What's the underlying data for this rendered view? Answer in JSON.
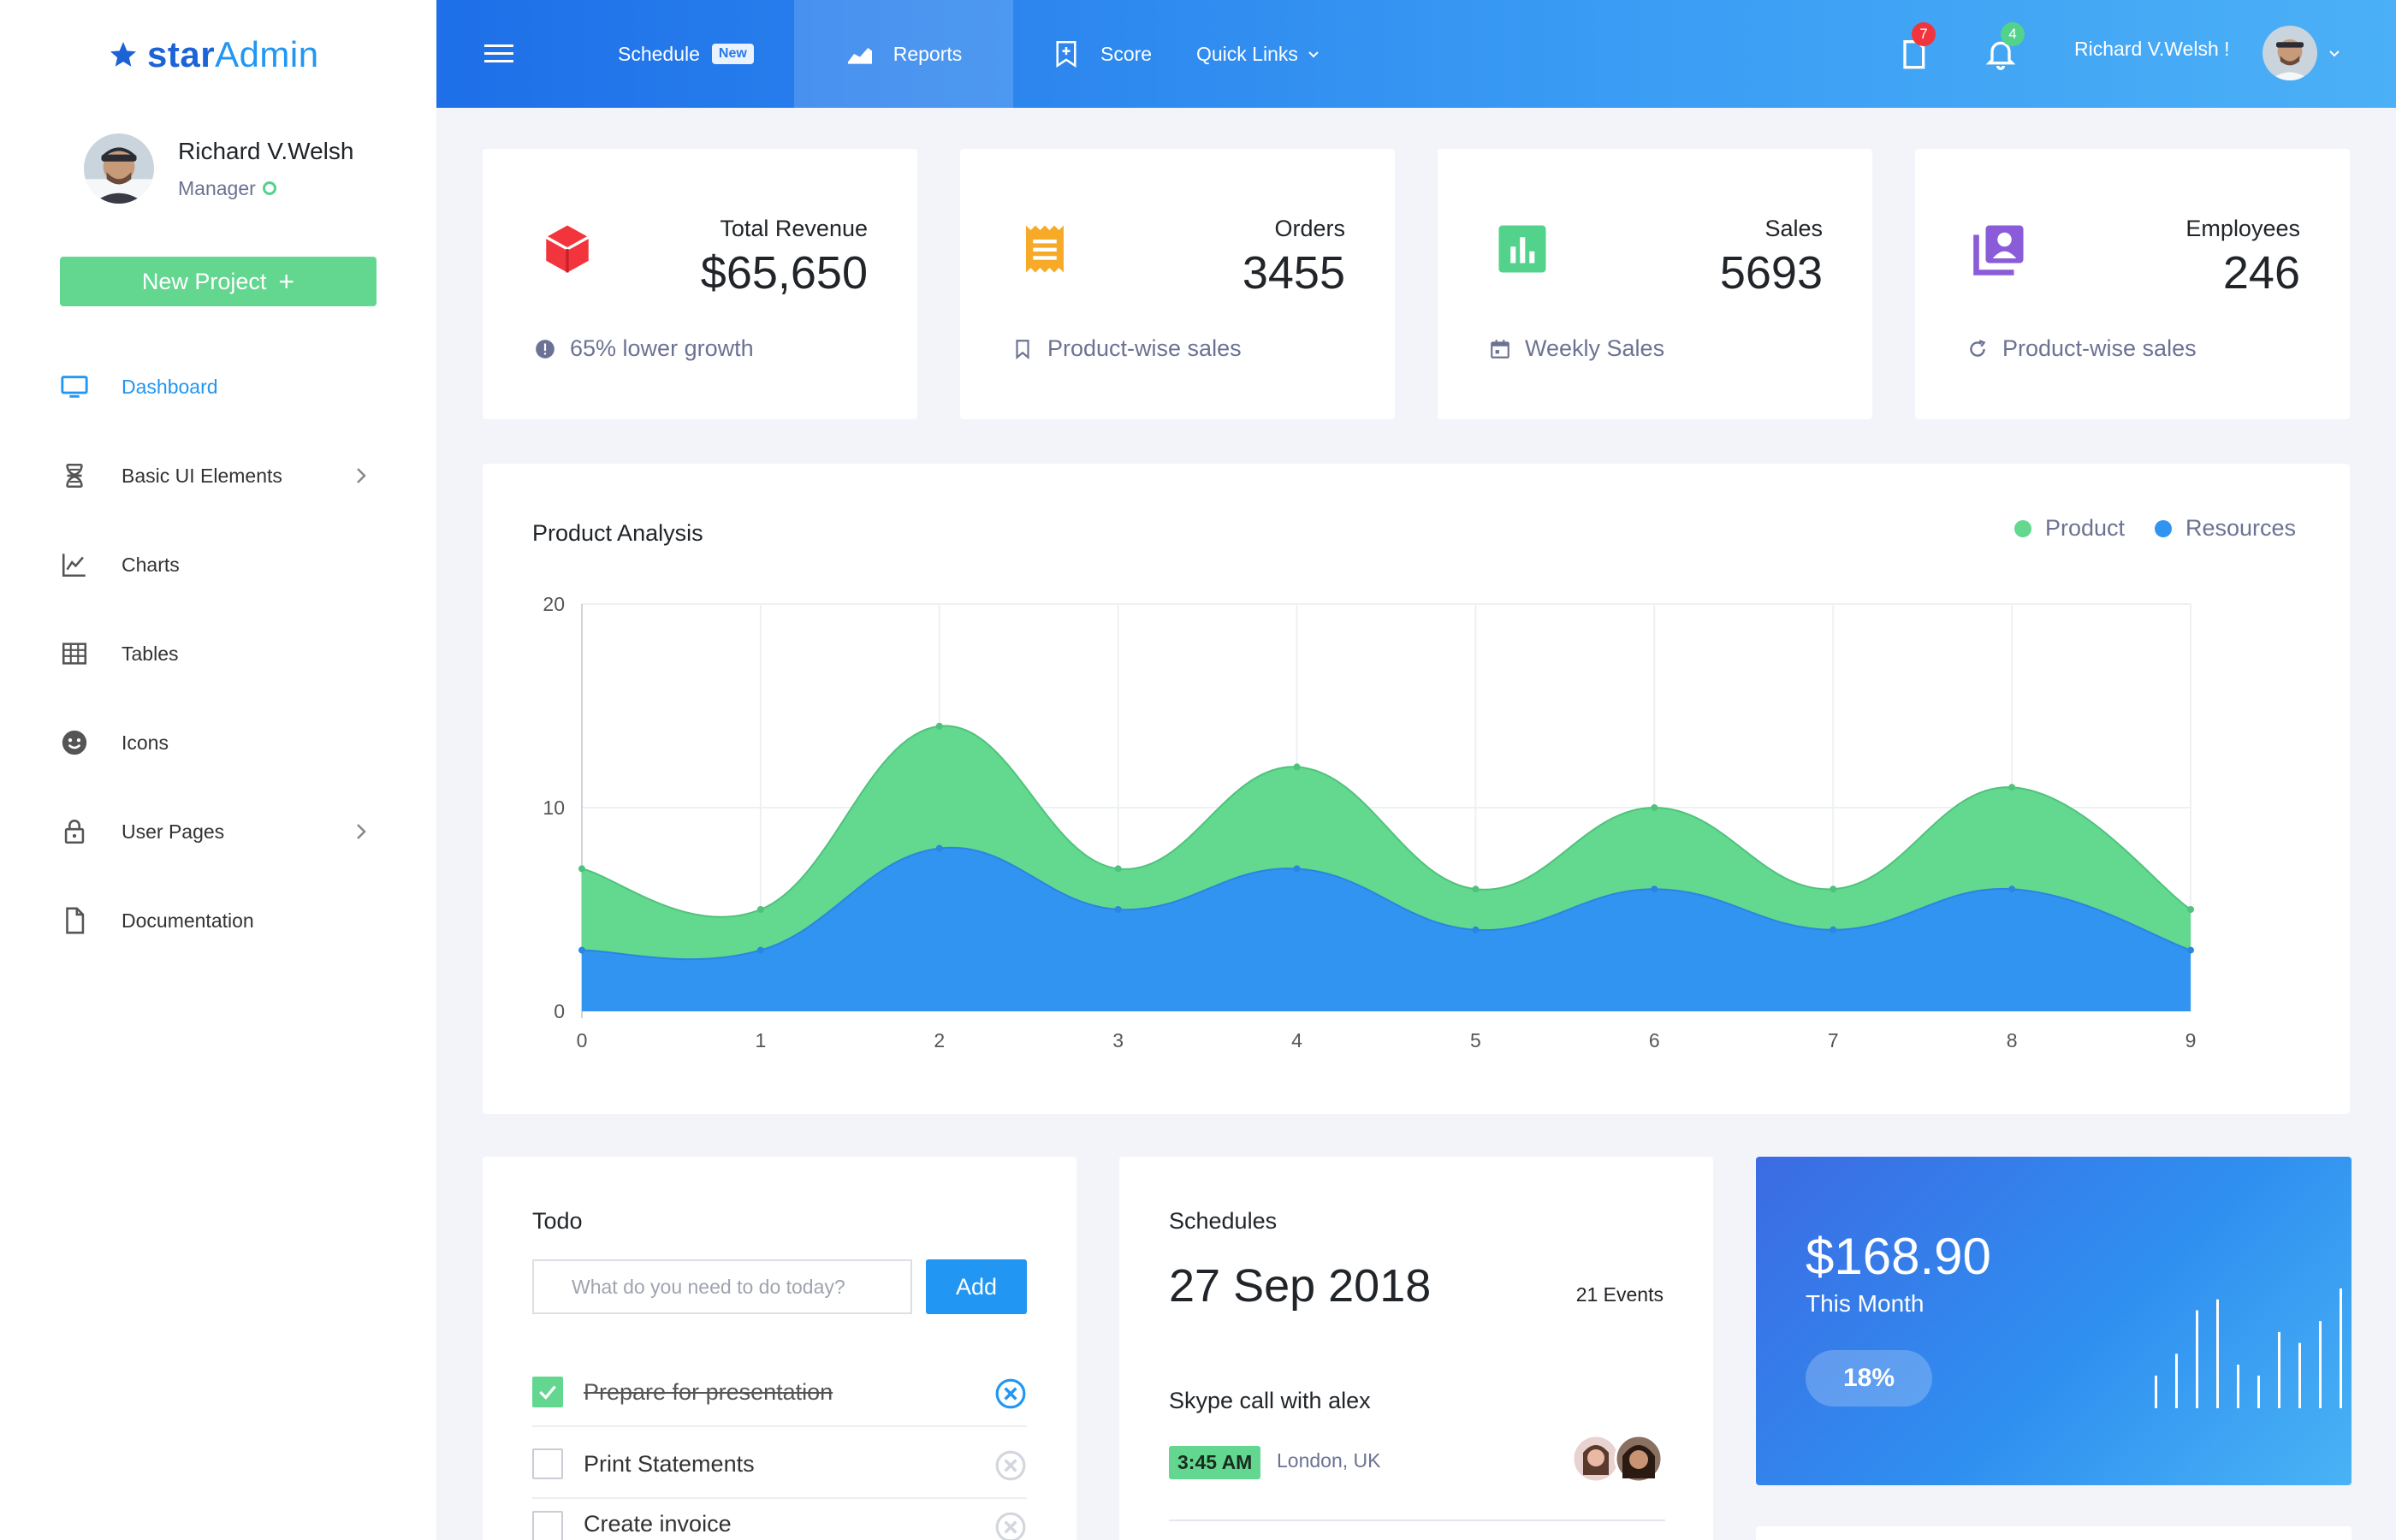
{
  "brand": {
    "name_bold": "star",
    "name_light": "Admin"
  },
  "sidebar": {
    "profile": {
      "name": "Richard V.Welsh",
      "role": "Manager"
    },
    "new_project_label": "New Project",
    "items": [
      {
        "label": "Dashboard",
        "icon": "monitor-icon",
        "active": true
      },
      {
        "label": "Basic UI Elements",
        "icon": "dna-icon",
        "has_submenu": true
      },
      {
        "label": "Charts",
        "icon": "line-chart-icon"
      },
      {
        "label": "Tables",
        "icon": "grid-icon"
      },
      {
        "label": "Icons",
        "icon": "smiley-icon"
      },
      {
        "label": "User Pages",
        "icon": "lock-icon",
        "has_submenu": true
      },
      {
        "label": "Documentation",
        "icon": "file-icon"
      }
    ]
  },
  "topbar": {
    "schedule_label": "Schedule",
    "schedule_badge": "New",
    "reports_label": "Reports",
    "score_label": "Score",
    "quick_links_label": "Quick Links",
    "messages_count": "7",
    "notifications_count": "4",
    "user_greeting": "Richard V.Welsh !"
  },
  "stats": [
    {
      "label": "Total Revenue",
      "value": "$65,650",
      "footer": "65% lower growth",
      "icon": "cube-icon",
      "color": "#f2353d",
      "footer_icon": "alert-circle-icon"
    },
    {
      "label": "Orders",
      "value": "3455",
      "footer": "Product-wise sales",
      "icon": "receipt-icon",
      "color": "#f7a928",
      "footer_icon": "bookmark-icon"
    },
    {
      "label": "Sales",
      "value": "5693",
      "footer": "Weekly Sales",
      "icon": "bar-chart-icon",
      "color": "#53d28c",
      "footer_icon": "calendar-icon"
    },
    {
      "label": "Employees",
      "value": "246",
      "footer": "Product-wise sales",
      "icon": "contacts-icon",
      "color": "#8a5cd9",
      "footer_icon": "refresh-icon"
    }
  ],
  "chart_data": {
    "type": "area",
    "title": "Product Analysis",
    "x": [
      0,
      1,
      2,
      3,
      4,
      5,
      6,
      7,
      8,
      9
    ],
    "ylim": [
      0,
      20
    ],
    "yticks": [
      0,
      10,
      20
    ],
    "grid": true,
    "legend_position": "top-right",
    "stacked": true,
    "series": [
      {
        "name": "Product",
        "color": "#63d88f",
        "values": [
          7,
          5,
          14,
          7,
          12,
          6,
          10,
          6,
          11,
          5
        ]
      },
      {
        "name": "Resources",
        "color": "#3194f0",
        "values": [
          3,
          3,
          8,
          5,
          7,
          4,
          6,
          4,
          6,
          3
        ]
      }
    ]
  },
  "todo": {
    "title": "Todo",
    "input_placeholder": "What do you need to do today?",
    "add_label": "Add",
    "items": [
      {
        "text": "Prepare for presentation",
        "done": true
      },
      {
        "text": "Print Statements",
        "done": false
      },
      {
        "text": "Create invoice",
        "done": false
      }
    ]
  },
  "schedules": {
    "title": "Schedules",
    "date": "27 Sep 2018",
    "events_count": "21 Events",
    "item_title": "Skype call with alex",
    "item_time": "3:45 AM",
    "item_location": "London, UK"
  },
  "revenue": {
    "amount": "$168.90",
    "subtitle": "This Month",
    "percent": "18%",
    "sparkline_values": [
      3,
      5,
      9,
      10,
      4,
      3,
      7,
      6,
      8,
      11
    ]
  }
}
